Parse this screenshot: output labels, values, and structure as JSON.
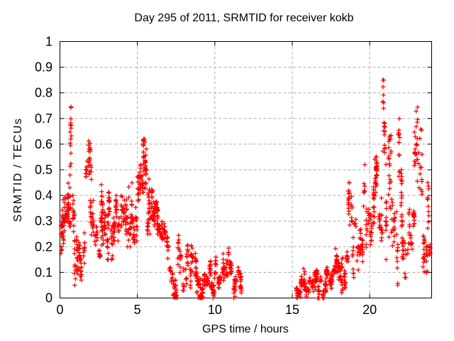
{
  "page": {
    "background": "#ffffff"
  },
  "chart_data": {
    "type": "scatter",
    "title": "Day 295 of 2011, SRMTID for receiver kokb",
    "xlabel": "GPS time / hours",
    "ylabel": "SRMTID / TECUs",
    "xlim": [
      0,
      24
    ],
    "ylim": [
      0,
      1
    ],
    "xticks": [
      0,
      5,
      10,
      15,
      20
    ],
    "yticks": [
      0,
      0.1,
      0.2,
      0.3,
      0.4,
      0.5,
      0.6,
      0.7,
      0.8,
      0.9,
      1
    ],
    "grid": true,
    "grid_style": "dashed",
    "grid_color": "#ababab",
    "axis_color": "#000000",
    "background": "#ffffff",
    "legend": "none",
    "series": [
      {
        "name": "SRMTID",
        "marker": "plus",
        "color": "#ff0000"
      }
    ],
    "marker_color": "#ff0000",
    "marker_size_px": 7,
    "data_gap_hours": [
      11.7,
      15.2
    ],
    "zero_square_points": [
      {
        "x": 7.47,
        "y": 0.004
      },
      {
        "x": 9.05,
        "y": 0.004
      }
    ],
    "density_bins": [
      [
        0.0,
        0.4,
        45,
        0.15,
        0.47,
        0.55
      ],
      [
        0.4,
        0.8,
        50,
        0.28,
        0.79,
        0.4
      ],
      [
        0.8,
        1.2,
        40,
        0.05,
        0.4,
        0.45
      ],
      [
        1.2,
        1.6,
        35,
        0.07,
        0.28,
        0.45
      ],
      [
        1.6,
        2.05,
        30,
        0.4,
        0.63,
        0.6
      ],
      [
        1.9,
        2.6,
        45,
        0.13,
        0.38,
        0.5
      ],
      [
        2.6,
        3.0,
        45,
        0.18,
        0.57,
        0.4
      ],
      [
        3.0,
        3.6,
        55,
        0.15,
        0.45,
        0.5
      ],
      [
        3.6,
        4.3,
        55,
        0.15,
        0.52,
        0.4
      ],
      [
        4.3,
        5.0,
        50,
        0.2,
        0.53,
        0.5
      ],
      [
        5.0,
        5.5,
        55,
        0.28,
        0.62,
        0.65
      ],
      [
        5.5,
        6.0,
        65,
        0.25,
        0.65,
        0.45
      ],
      [
        6.0,
        6.4,
        45,
        0.22,
        0.42,
        0.5
      ],
      [
        6.4,
        7.0,
        45,
        0.08,
        0.32,
        0.45
      ],
      [
        7.0,
        7.6,
        35,
        0.01,
        0.18,
        0.4
      ],
      [
        7.6,
        8.2,
        30,
        0.03,
        0.28,
        0.35
      ],
      [
        8.2,
        8.8,
        45,
        0.04,
        0.28,
        0.4
      ],
      [
        8.8,
        9.3,
        40,
        0.0,
        0.2,
        0.4
      ],
      [
        9.3,
        10.0,
        60,
        0.0,
        0.16,
        0.4
      ],
      [
        10.0,
        10.7,
        55,
        0.01,
        0.18,
        0.45
      ],
      [
        10.7,
        11.3,
        45,
        0.0,
        0.22,
        0.4
      ],
      [
        11.3,
        11.7,
        25,
        0.02,
        0.15,
        0.4
      ],
      [
        15.2,
        15.8,
        50,
        0.0,
        0.12,
        0.35
      ],
      [
        15.8,
        16.5,
        55,
        0.0,
        0.1,
        0.4
      ],
      [
        16.5,
        17.2,
        60,
        0.0,
        0.12,
        0.4
      ],
      [
        17.2,
        17.8,
        55,
        0.0,
        0.15,
        0.4
      ],
      [
        17.8,
        18.3,
        45,
        0.02,
        0.26,
        0.4
      ],
      [
        18.3,
        18.6,
        25,
        0.04,
        0.2,
        0.45
      ],
      [
        18.6,
        18.9,
        25,
        0.1,
        0.45,
        0.75
      ],
      [
        18.9,
        19.6,
        45,
        0.08,
        0.35,
        0.55
      ],
      [
        19.6,
        20.3,
        55,
        0.15,
        0.52,
        0.6
      ],
      [
        20.3,
        20.8,
        50,
        0.1,
        0.55,
        0.7
      ],
      [
        20.8,
        21.3,
        45,
        0.15,
        0.85,
        0.55
      ],
      [
        21.3,
        21.8,
        40,
        0.05,
        0.75,
        0.35
      ],
      [
        21.8,
        22.1,
        30,
        0.28,
        0.75,
        0.45
      ],
      [
        22.1,
        22.9,
        50,
        0.08,
        0.42,
        0.45
      ],
      [
        22.9,
        23.4,
        40,
        0.25,
        0.93,
        0.5
      ],
      [
        23.4,
        24.0,
        45,
        0.08,
        0.45,
        0.55
      ]
    ]
  }
}
